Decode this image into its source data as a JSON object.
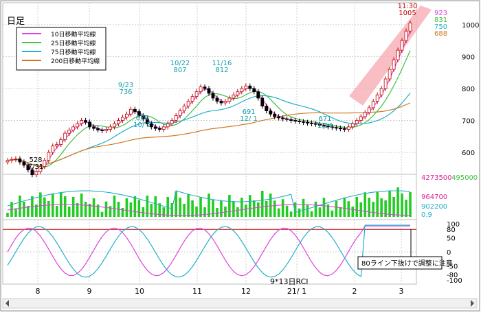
{
  "title": "日足",
  "chart_data": {
    "type": "candlestick",
    "title": "日足",
    "x_months": [
      "8",
      "9",
      "10",
      "11",
      "12",
      "21/ 1",
      "2",
      "3"
    ],
    "price_axis": {
      "ticks": [
        600,
        700,
        800,
        900,
        1000
      ],
      "ylim": [
        540,
        1060
      ]
    },
    "volume_axis": {
      "labels": [
        "4273500",
        "964700",
        "902200",
        "0.9"
      ],
      "right_label": "495000"
    },
    "rci_axis": {
      "ticks": [
        "100",
        "80",
        "50",
        "0",
        "-50",
        "-80",
        "-100"
      ]
    },
    "legend": [
      {
        "name": "10日移動平均線",
        "color": "#e040e0"
      },
      {
        "name": "25日移動平均線",
        "color": "#40c040"
      },
      {
        "name": "75日移動平均線",
        "color": "#20b0c8"
      },
      {
        "name": "200日移動平均線",
        "color": "#d07820"
      }
    ],
    "ma_latest": [
      {
        "value": "923",
        "color": "#e040e0"
      },
      {
        "value": "831",
        "color": "#40c040"
      },
      {
        "value": "750",
        "color": "#20b0c8"
      },
      {
        "value": "688",
        "color": "#d07820"
      }
    ],
    "price_annotations": [
      {
        "label": "528",
        "date": "7/31",
        "kind": "low"
      },
      {
        "label": "736",
        "date": "9/23",
        "kind": "high"
      },
      {
        "label": "670",
        "date": "10/ 2",
        "kind": "low"
      },
      {
        "label": "807",
        "date": "10/22",
        "kind": "high"
      },
      {
        "label": "812",
        "date": "11/16",
        "kind": "high"
      },
      {
        "label": "691",
        "date": "12/ 1",
        "kind": "low"
      },
      {
        "label": "671",
        "date": "1/14",
        "kind": "low"
      },
      {
        "label": "1005",
        "date": "11:30",
        "kind": "high"
      }
    ],
    "rci_label": "9*13日RCI",
    "rci_callout": "80ライン下抜けで調整に注意",
    "close_series": [
      575,
      578,
      580,
      570,
      560,
      545,
      530,
      540,
      556,
      575,
      600,
      620,
      625,
      640,
      660,
      670,
      680,
      690,
      700,
      695,
      680,
      675,
      670,
      668,
      672,
      680,
      690,
      700,
      710,
      720,
      735,
      728,
      715,
      705,
      690,
      680,
      675,
      672,
      680,
      690,
      700,
      715,
      730,
      745,
      760,
      775,
      790,
      805,
      800,
      785,
      770,
      760,
      755,
      760,
      770,
      780,
      790,
      800,
      808,
      800,
      790,
      770,
      745,
      730,
      720,
      712,
      708,
      705,
      703,
      700,
      698,
      696,
      694,
      692,
      690,
      688,
      685,
      682,
      680,
      678,
      676,
      674,
      672,
      680,
      690,
      700,
      712,
      725,
      740,
      760,
      780,
      800,
      830,
      860,
      890,
      920,
      950,
      980,
      1005
    ]
  }
}
